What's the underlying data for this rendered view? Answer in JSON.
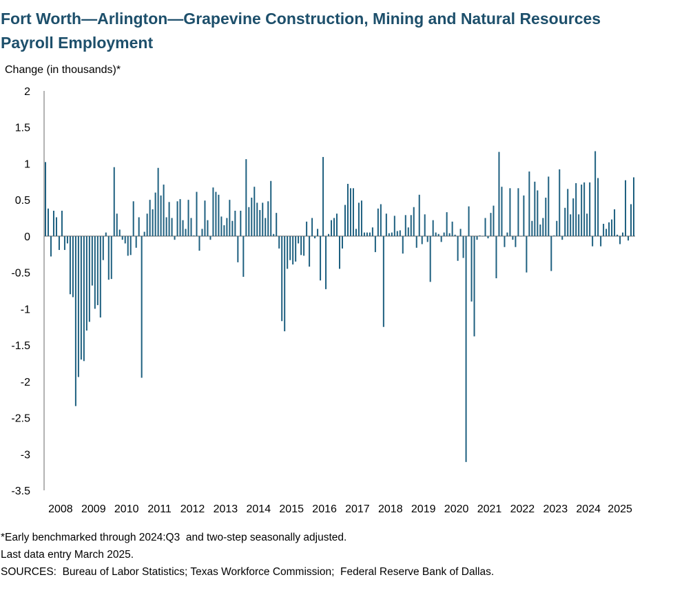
{
  "chart_data": {
    "type": "bar",
    "title_lines": [
      "Fort Worth—Arlington—Grapevine Construction, Mining and Natural Resources",
      "Payroll Employment"
    ],
    "ylabel": "Change (in thousands)*",
    "xlabel": "",
    "ylim": [
      -3.5,
      2
    ],
    "yticks": [
      2,
      1.5,
      1,
      0.5,
      0,
      -0.5,
      -1,
      -1.5,
      -2,
      -2.5,
      -3,
      -3.5
    ],
    "ytick_labels": [
      "2",
      "1.5",
      "1",
      "0.5",
      "0",
      "-0.5",
      "-1",
      "-1.5",
      "-2",
      "-2.5",
      "-3",
      "-3.5"
    ],
    "year_labels": [
      "2008",
      "2009",
      "2010",
      "2011",
      "2012",
      "2013",
      "2014",
      "2015",
      "2016",
      "2017",
      "2018",
      "2019",
      "2020",
      "2021",
      "2022",
      "2023",
      "2024",
      "2025"
    ],
    "start": "2008-01",
    "end": "2025-03",
    "bar_color": "#1d5f7f",
    "values": [
      1.02,
      0.38,
      -0.28,
      0.35,
      0.26,
      -0.19,
      0.35,
      -0.19,
      -0.1,
      -0.8,
      -0.84,
      -2.34,
      -1.94,
      -1.7,
      -1.72,
      -1.3,
      -1.18,
      -0.68,
      -1.0,
      -0.95,
      -1.12,
      -0.33,
      0.05,
      -0.6,
      -0.59,
      0.95,
      0.31,
      0.09,
      -0.05,
      -0.1,
      -0.27,
      -0.26,
      0.48,
      -0.16,
      0.26,
      -1.95,
      0.06,
      0.31,
      0.5,
      0.37,
      0.6,
      0.94,
      0.56,
      0.71,
      0.26,
      0.47,
      0.25,
      -0.05,
      0.48,
      0.51,
      0.22,
      0.1,
      0.5,
      0.25,
      0.01,
      0.61,
      -0.2,
      0.1,
      0.49,
      0.22,
      -0.05,
      0.67,
      0.61,
      0.57,
      0.27,
      0.15,
      0.25,
      0.5,
      0.21,
      0.35,
      -0.36,
      0.35,
      -0.56,
      1.06,
      0.4,
      0.53,
      0.68,
      0.46,
      0.36,
      0.46,
      0.25,
      0.48,
      0.76,
      0.03,
      0.32,
      -0.17,
      -1.17,
      -1.31,
      -0.45,
      -0.33,
      -0.39,
      -0.35,
      -0.1,
      -0.26,
      -0.27,
      0.2,
      -0.42,
      0.25,
      -0.03,
      0.1,
      -0.61,
      1.09,
      -0.73,
      0.03,
      0.22,
      0.25,
      0.31,
      -0.45,
      -0.17,
      0.43,
      0.72,
      0.66,
      0.66,
      0.1,
      0.46,
      0.49,
      0.05,
      0.05,
      0.05,
      0.12,
      -0.22,
      0.38,
      0.44,
      -1.25,
      0.31,
      0.04,
      0.05,
      0.28,
      0.07,
      0.08,
      -0.24,
      0.29,
      0.12,
      0.29,
      0.4,
      -0.16,
      0.57,
      -0.11,
      0.3,
      -0.08,
      -0.63,
      0.22,
      0.05,
      0.03,
      -0.08,
      0.05,
      0.33,
      0.04,
      0.2,
      0.02,
      -0.34,
      0.1,
      -0.3,
      -3.11,
      0.41,
      -0.9,
      -1.38,
      -0.05,
      0.01,
      0.0,
      0.25,
      -0.03,
      0.32,
      0.42,
      -0.58,
      1.16,
      0.68,
      -0.15,
      0.05,
      0.66,
      -0.05,
      -0.15,
      0.66,
      0.0,
      0.56,
      -0.5,
      0.89,
      0.21,
      0.75,
      0.63,
      0.16,
      0.25,
      0.53,
      0.82,
      -0.48,
      0.01,
      0.21,
      0.92,
      -0.05,
      0.39,
      0.65,
      0.3,
      0.52,
      0.73,
      0.3,
      0.71,
      0.74,
      0.31,
      0.74,
      -0.14,
      1.17,
      0.8,
      -0.14,
      0.17,
      0.1,
      0.19,
      0.23,
      0.37,
      0.02,
      -0.11,
      0.05,
      0.77,
      -0.06,
      0.44,
      0.81
    ]
  },
  "footnotes": {
    "note": "*Early benchmarked through 2024:Q3  and two-step seasonally adjusted.",
    "last_entry": "Last data entry March 2025.",
    "sources": "SOURCES:  Bureau of Labor Statistics; Texas Workforce Commission;  Federal Reserve Bank of Dallas."
  }
}
